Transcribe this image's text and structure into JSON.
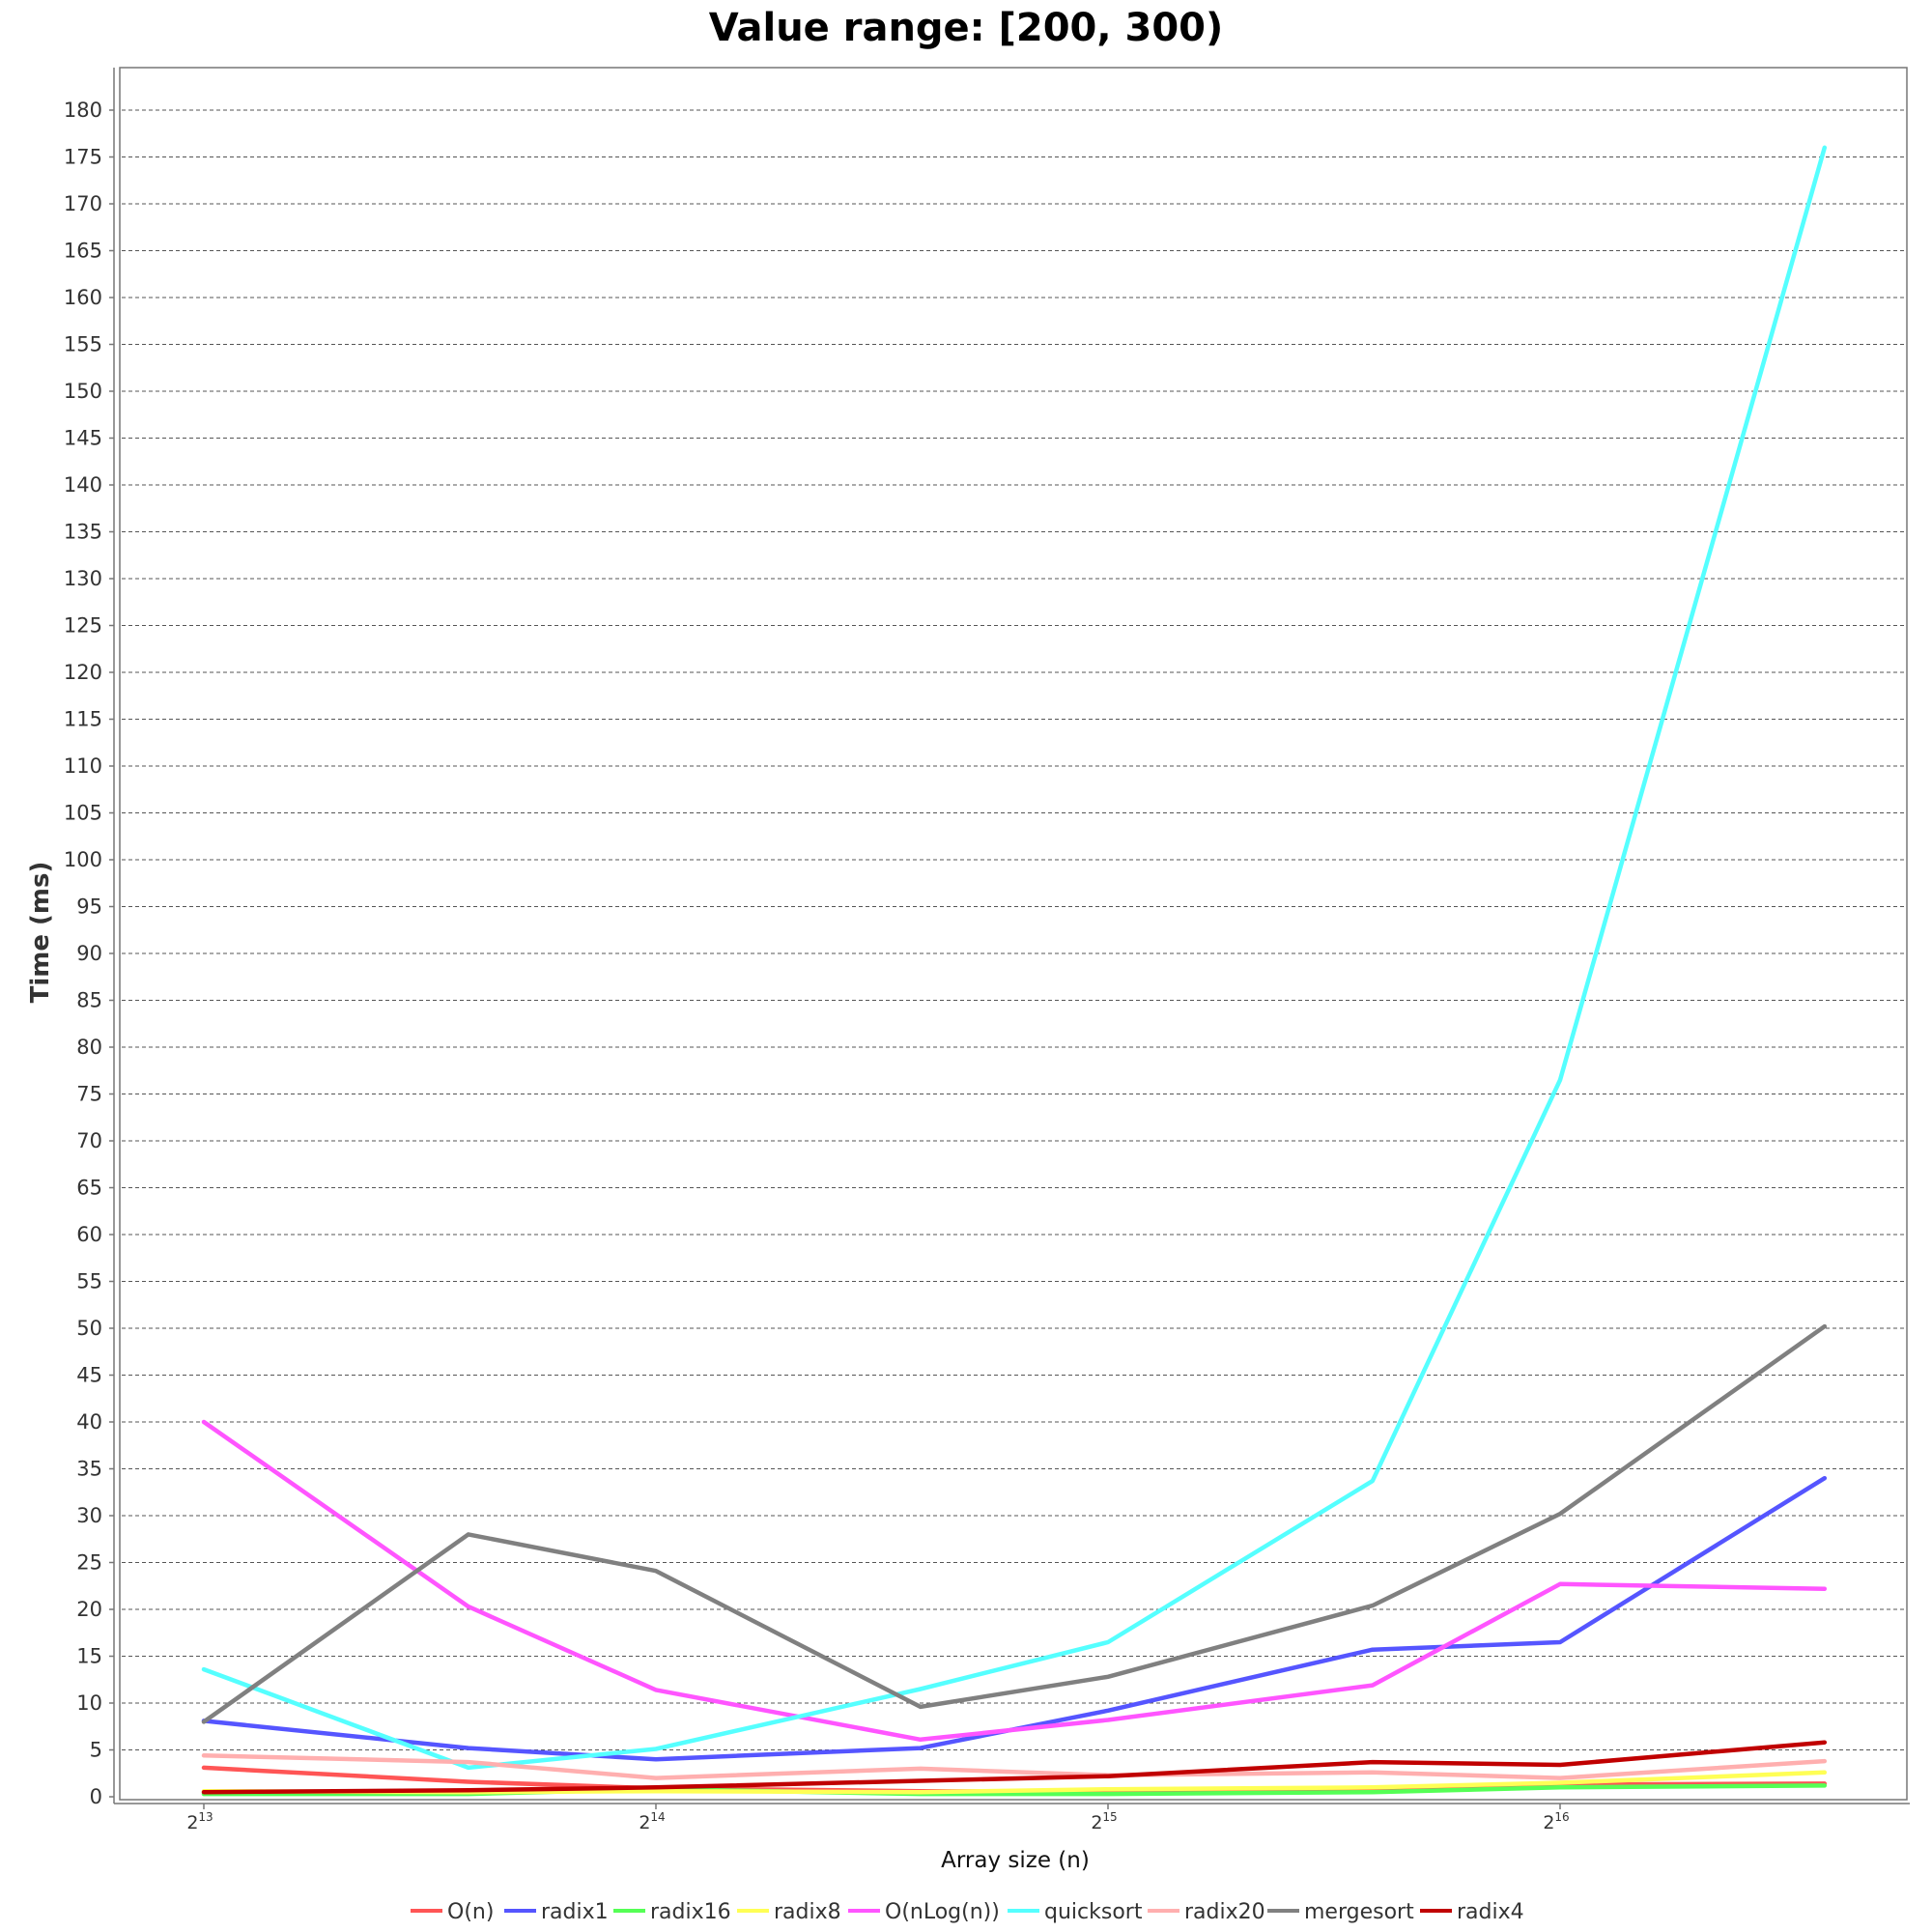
{
  "chart_data": {
    "type": "line",
    "title": "Value range: [200, 300)",
    "xlabel": "Array size (n)",
    "ylabel": "Time (ms)",
    "x_scale": "log2",
    "x_ticks": [
      {
        "base": "2",
        "exp": "13",
        "value": 8192
      },
      {
        "base": "2",
        "exp": "14",
        "value": 16384
      },
      {
        "base": "2",
        "exp": "15",
        "value": 32768
      },
      {
        "base": "2",
        "exp": "16",
        "value": 65536
      }
    ],
    "y_ticks": [
      0,
      5,
      10,
      15,
      20,
      25,
      30,
      35,
      40,
      45,
      50,
      55,
      60,
      65,
      70,
      75,
      80,
      85,
      90,
      95,
      100,
      105,
      110,
      115,
      120,
      125,
      130,
      135,
      140,
      145,
      150,
      155,
      160,
      165,
      170,
      175,
      180
    ],
    "ylim": [
      0,
      184
    ],
    "x": [
      8192,
      12288,
      16384,
      24576,
      32768,
      49152,
      65536,
      98304
    ],
    "grid": true,
    "legend_position": "bottom",
    "series": [
      {
        "name": "O(n)",
        "color": "#ff5555",
        "values": [
          3.1,
          1.6,
          0.9,
          0.6,
          0.5,
          0.9,
          1.3,
          1.4
        ]
      },
      {
        "name": "radix1",
        "color": "#5555ff",
        "values": [
          8.1,
          5.2,
          4.0,
          5.2,
          9.2,
          15.7,
          16.5,
          34.0
        ]
      },
      {
        "name": "radix16",
        "color": "#55ff55",
        "values": [
          0.3,
          0.3,
          0.8,
          0.3,
          0.3,
          0.5,
          1.0,
          1.2
        ]
      },
      {
        "name": "radix8",
        "color": "#ffff55",
        "values": [
          0.6,
          0.5,
          0.6,
          0.5,
          0.8,
          1.0,
          1.5,
          2.6
        ]
      },
      {
        "name": "O(nLog(n))",
        "color": "#ff55ff",
        "values": [
          40.0,
          20.3,
          11.4,
          6.1,
          8.2,
          11.9,
          22.7,
          22.2
        ]
      },
      {
        "name": "quicksort",
        "color": "#55ffff",
        "values": [
          13.6,
          3.1,
          5.1,
          11.5,
          16.5,
          33.7,
          76.5,
          176.0
        ]
      },
      {
        "name": "radix20",
        "color": "#ffafaf",
        "values": [
          4.4,
          3.7,
          2.0,
          3.0,
          2.3,
          2.6,
          2.0,
          3.8
        ]
      },
      {
        "name": "mergesort",
        "color": "#808080",
        "values": [
          8.0,
          28.0,
          24.1,
          9.6,
          12.8,
          20.4,
          30.2,
          50.2
        ]
      },
      {
        "name": "radix4",
        "color": "#c00000",
        "values": [
          0.5,
          0.7,
          1.0,
          1.7,
          2.2,
          3.7,
          3.4,
          5.8
        ]
      }
    ]
  }
}
